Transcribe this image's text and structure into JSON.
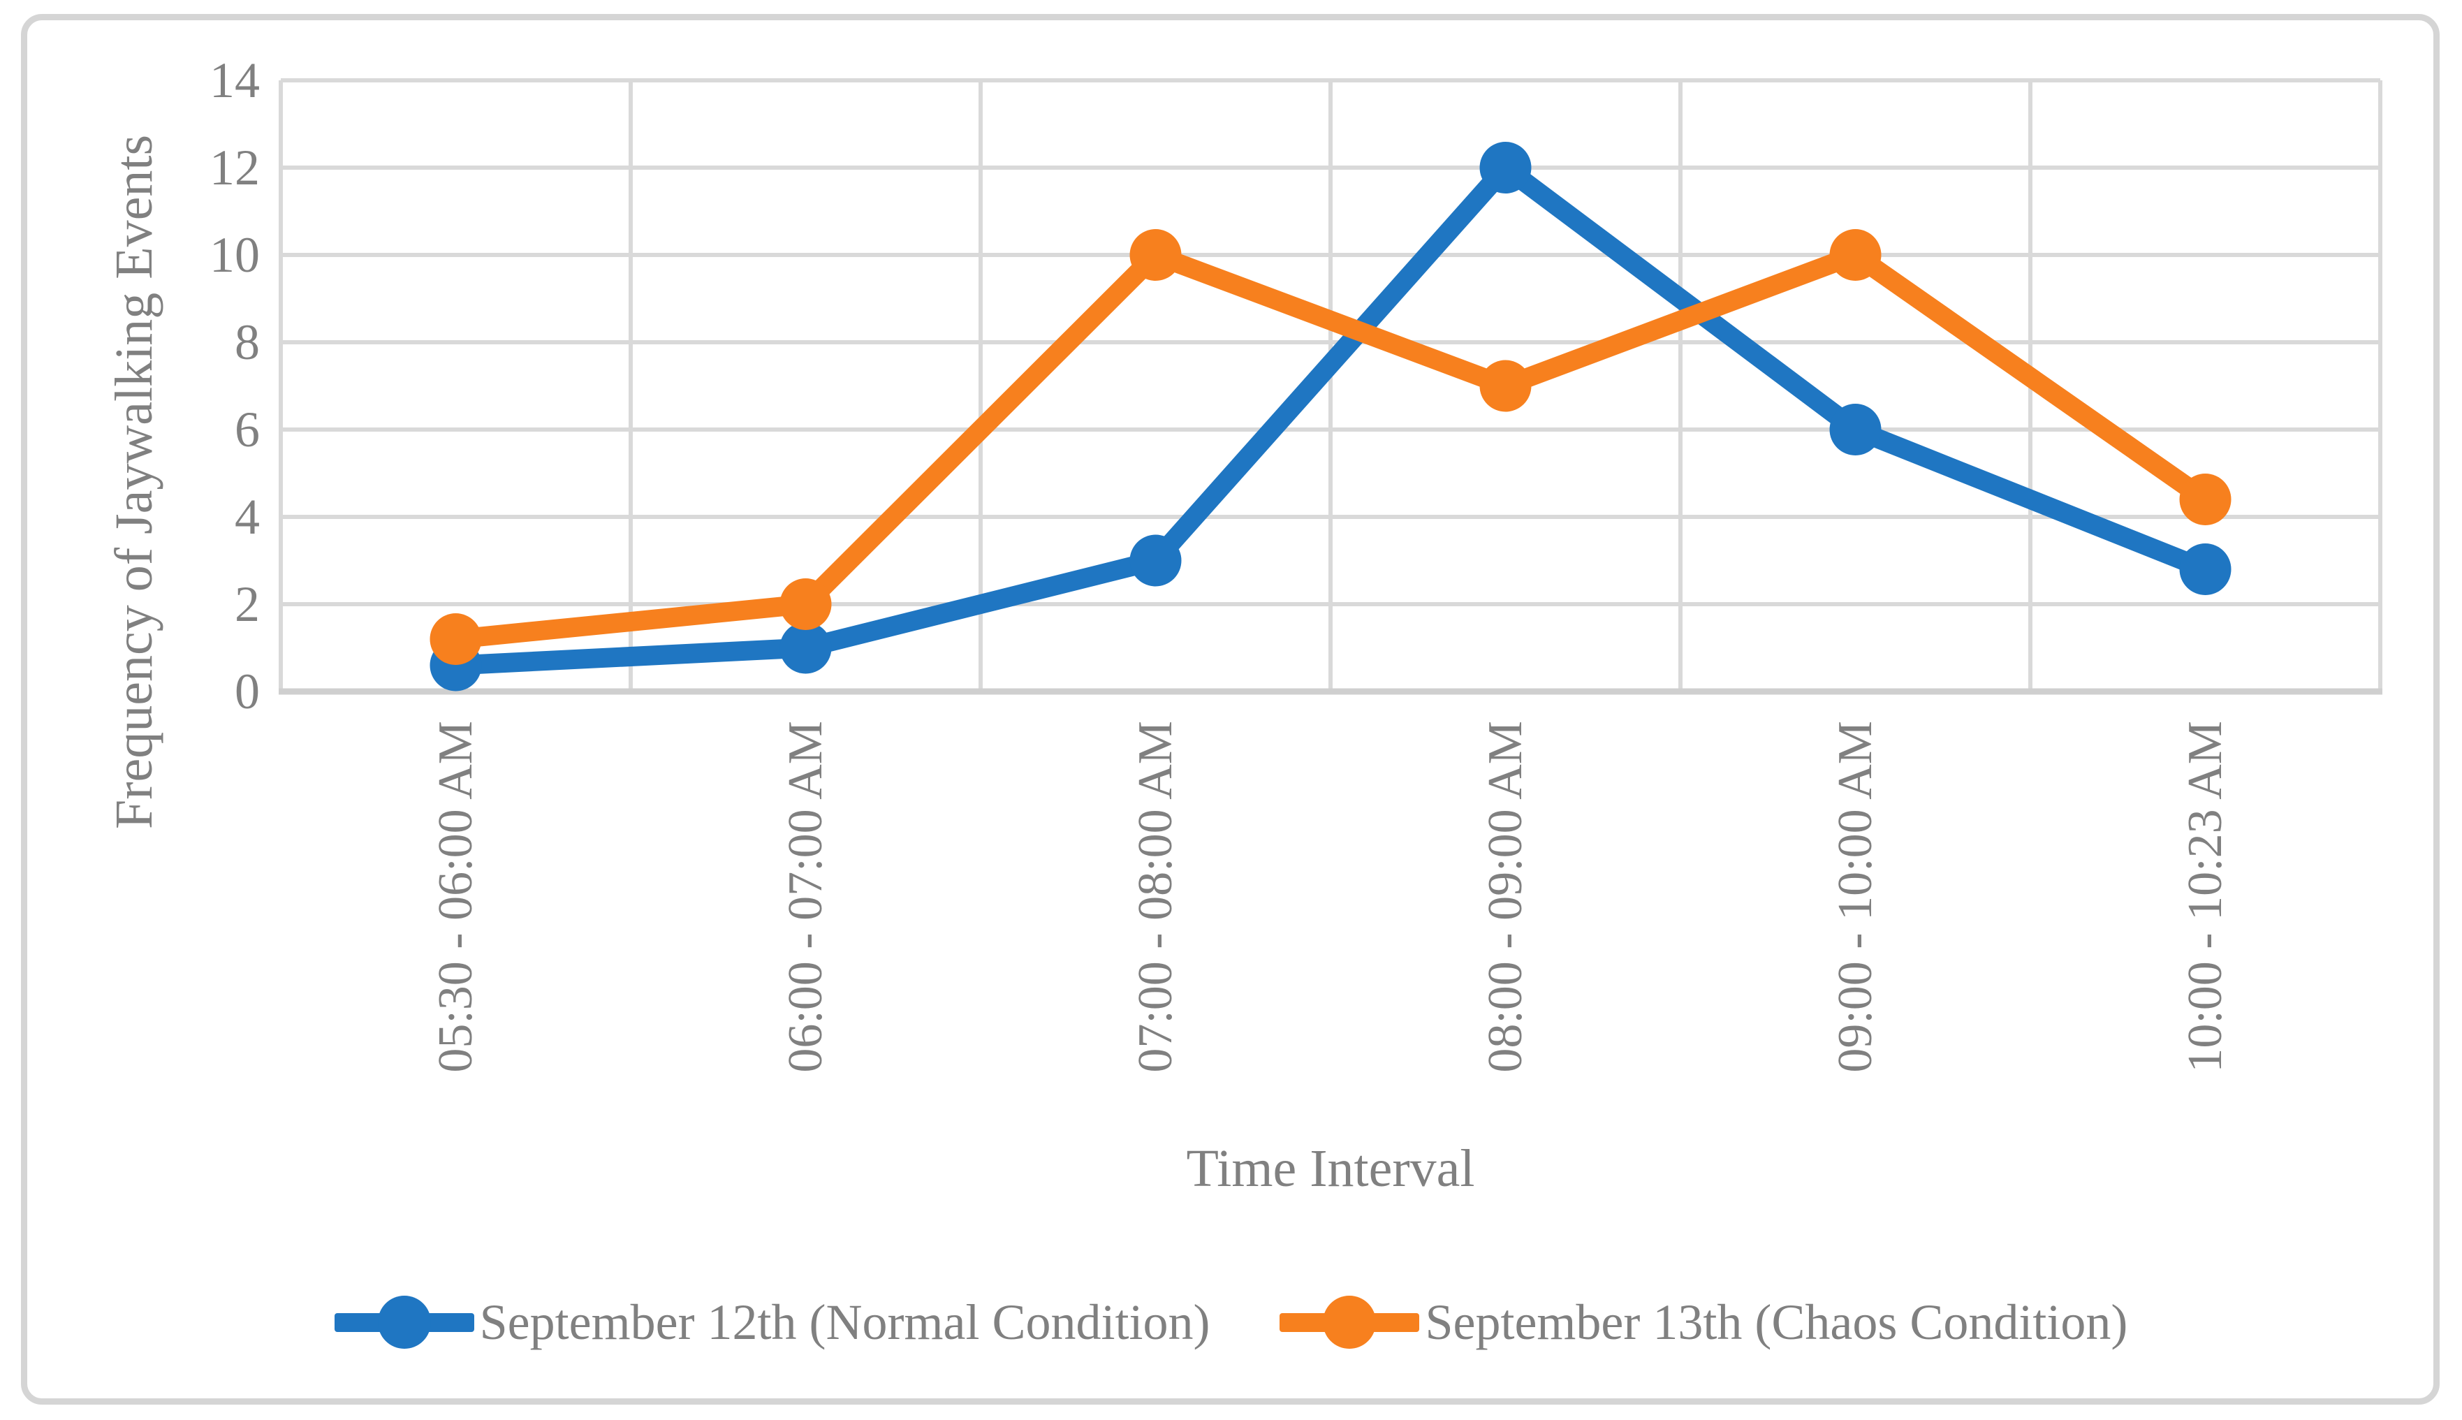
{
  "chart_data": {
    "type": "line",
    "categories": [
      "05:30 - 06:00 AM",
      "06:00 - 07:00 AM",
      "07:00 - 08:00 AM",
      "08:00 - 09:00 AM",
      "09:00 - 10:00 AM",
      "10:00 - 10:23 AM"
    ],
    "series": [
      {
        "name": "September 12th (Normal Condition)",
        "color": "#1F76C2",
        "values": [
          0.6,
          1,
          3,
          12,
          6,
          2.8
        ]
      },
      {
        "name": "September 13th (Chaos Condition)",
        "color": "#F7801E",
        "values": [
          1.2,
          2,
          10,
          7,
          10,
          4.4
        ]
      }
    ],
    "xlabel": "Time Interval",
    "ylabel": "Frequency of Jaywalking Events",
    "ylim": [
      0,
      14
    ],
    "ytick_step": 2,
    "yticks": [
      0,
      2,
      4,
      6,
      8,
      10,
      12,
      14
    ],
    "grid": true,
    "legend_position": "bottom",
    "marker": "circle",
    "colors": {
      "text": "#808080",
      "gridline": "#d9d9d9",
      "axis_line": "#cfcfcf",
      "figure_border": "#d5d5d5",
      "background": "#ffffff"
    }
  }
}
